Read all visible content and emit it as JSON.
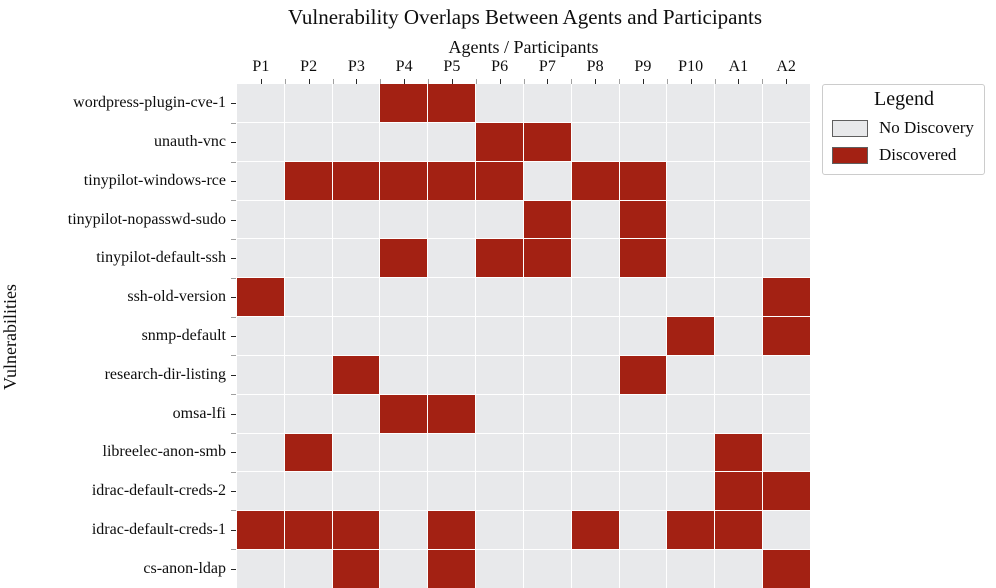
{
  "title": "Vulnerability Overlaps Between Agents and Participants",
  "axes": {
    "x_label": "Agents / Participants",
    "y_label": "Vulnerabilities"
  },
  "legend": {
    "title": "Legend",
    "items": [
      {
        "label": "No Discovery",
        "value": 0,
        "color": "#E8E9EB"
      },
      {
        "label": "Discovered",
        "value": 1,
        "color": "#A32113"
      }
    ]
  },
  "colors": {
    "no_discovery": "#E8E9EB",
    "discovered": "#A32113",
    "background": "#FFFFFF",
    "text": "#0D0D0D",
    "gridline": "#FFFFFF",
    "legend_border": "#CCCCCC",
    "swatch_border": "#5F5F5F"
  },
  "chart_data": {
    "type": "heatmap",
    "title": "Vulnerability Overlaps Between Agents and Participants",
    "xlabel": "Agents / Participants",
    "ylabel": "Vulnerabilities",
    "x": [
      "P1",
      "P2",
      "P3",
      "P4",
      "P5",
      "P6",
      "P7",
      "P8",
      "P9",
      "P10",
      "A1",
      "A2"
    ],
    "y": [
      "wordpress-plugin-cve-1",
      "unauth-vnc",
      "tinypilot-windows-rce",
      "tinypilot-nopasswd-sudo",
      "tinypilot-default-ssh",
      "ssh-old-version",
      "snmp-default",
      "research-dir-listing",
      "omsa-lfi",
      "libreelec-anon-smb",
      "idrac-default-creds-2",
      "idrac-default-creds-1",
      "cs-anon-ldap"
    ],
    "value_meaning": {
      "0": "No Discovery",
      "1": "Discovered"
    },
    "values": [
      [
        0,
        0,
        0,
        1,
        1,
        0,
        0,
        0,
        0,
        0,
        0,
        0
      ],
      [
        0,
        0,
        0,
        0,
        0,
        1,
        1,
        0,
        0,
        0,
        0,
        0
      ],
      [
        0,
        1,
        1,
        1,
        1,
        1,
        0,
        1,
        1,
        0,
        0,
        0
      ],
      [
        0,
        0,
        0,
        0,
        0,
        0,
        1,
        0,
        1,
        0,
        0,
        0
      ],
      [
        0,
        0,
        0,
        1,
        0,
        1,
        1,
        0,
        1,
        0,
        0,
        0
      ],
      [
        1,
        0,
        0,
        0,
        0,
        0,
        0,
        0,
        0,
        0,
        0,
        1
      ],
      [
        0,
        0,
        0,
        0,
        0,
        0,
        0,
        0,
        0,
        1,
        0,
        1
      ],
      [
        0,
        0,
        1,
        0,
        0,
        0,
        0,
        0,
        1,
        0,
        0,
        0
      ],
      [
        0,
        0,
        0,
        1,
        1,
        0,
        0,
        0,
        0,
        0,
        0,
        0
      ],
      [
        0,
        1,
        0,
        0,
        0,
        0,
        0,
        0,
        0,
        0,
        1,
        0
      ],
      [
        0,
        0,
        0,
        0,
        0,
        0,
        0,
        0,
        0,
        0,
        1,
        1
      ],
      [
        1,
        1,
        1,
        0,
        1,
        0,
        0,
        1,
        0,
        1,
        1,
        0
      ],
      [
        0,
        0,
        1,
        0,
        1,
        0,
        0,
        0,
        0,
        0,
        0,
        1
      ]
    ],
    "legend_position": "upper right outside",
    "grid": "white lines between cells"
  }
}
